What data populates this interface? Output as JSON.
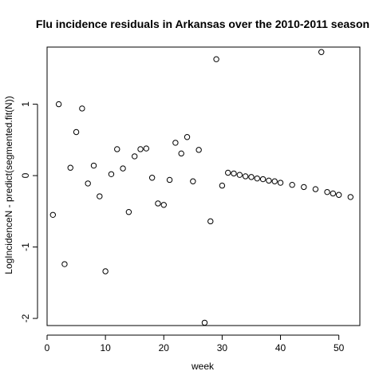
{
  "chart_data": {
    "type": "scatter",
    "title": "Flu incidence residuals in Arkansas over the 2010-2011 season",
    "xlabel": "week",
    "ylabel": "LogIncidenceN - predict(segmented.fit(N))",
    "xlim": [
      0,
      53.6
    ],
    "ylim": [
      -2.1,
      1.8
    ],
    "xticks": [
      0,
      10,
      20,
      30,
      40,
      50
    ],
    "yticks": [
      -2,
      -1,
      0,
      1
    ],
    "grid": false,
    "legend": "none",
    "point_style": "open-circle",
    "color": "#000000",
    "points": [
      {
        "x": 1,
        "y": -0.55
      },
      {
        "x": 2,
        "y": 1.0
      },
      {
        "x": 3,
        "y": -1.24
      },
      {
        "x": 4,
        "y": 0.11
      },
      {
        "x": 5,
        "y": 0.61
      },
      {
        "x": 6,
        "y": 0.94
      },
      {
        "x": 7,
        "y": -0.11
      },
      {
        "x": 8,
        "y": 0.14
      },
      {
        "x": 9,
        "y": -0.29
      },
      {
        "x": 10,
        "y": -1.34
      },
      {
        "x": 11,
        "y": 0.02
      },
      {
        "x": 12,
        "y": 0.37
      },
      {
        "x": 13,
        "y": 0.1
      },
      {
        "x": 14,
        "y": -0.51
      },
      {
        "x": 15,
        "y": 0.27
      },
      {
        "x": 16,
        "y": 0.37
      },
      {
        "x": 17,
        "y": 0.38
      },
      {
        "x": 18,
        "y": -0.03
      },
      {
        "x": 19,
        "y": -0.39
      },
      {
        "x": 20,
        "y": -0.41
      },
      {
        "x": 21,
        "y": -0.06
      },
      {
        "x": 22,
        "y": 0.46
      },
      {
        "x": 23,
        "y": 0.31
      },
      {
        "x": 24,
        "y": 0.54
      },
      {
        "x": 25,
        "y": -0.08
      },
      {
        "x": 26,
        "y": 0.36
      },
      {
        "x": 27,
        "y": -2.06
      },
      {
        "x": 28,
        "y": -0.64
      },
      {
        "x": 29,
        "y": 1.63
      },
      {
        "x": 30,
        "y": -0.14
      },
      {
        "x": 31,
        "y": 0.04
      },
      {
        "x": 32,
        "y": 0.03
      },
      {
        "x": 33,
        "y": 0.01
      },
      {
        "x": 34,
        "y": -0.01
      },
      {
        "x": 35,
        "y": -0.02
      },
      {
        "x": 36,
        "y": -0.04
      },
      {
        "x": 37,
        "y": -0.05
      },
      {
        "x": 38,
        "y": -0.07
      },
      {
        "x": 39,
        "y": -0.08
      },
      {
        "x": 40,
        "y": -0.1
      },
      {
        "x": 42,
        "y": -0.13
      },
      {
        "x": 44,
        "y": -0.16
      },
      {
        "x": 46,
        "y": -0.19
      },
      {
        "x": 47,
        "y": 1.73
      },
      {
        "x": 48,
        "y": -0.23
      },
      {
        "x": 49,
        "y": -0.25
      },
      {
        "x": 50,
        "y": -0.27
      },
      {
        "x": 52,
        "y": -0.3
      }
    ]
  }
}
